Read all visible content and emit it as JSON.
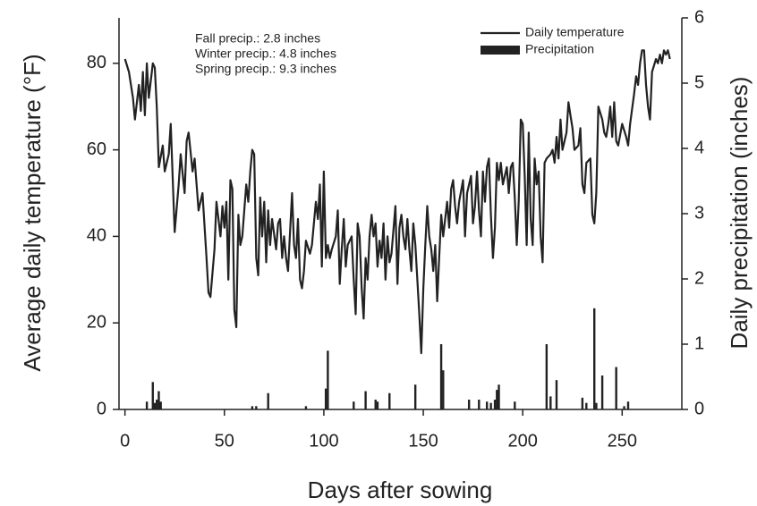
{
  "chart_data": {
    "type": "line",
    "xlabel": "Days after sowing",
    "ylabel": "Average daily temperature (°F)",
    "y2label": "Daily precipitation (inches)",
    "annotations": [
      "Fall precip.: 2.8 inches",
      "Winter precip.: 4.8 inches",
      "Spring precip.: 9.3 inches"
    ],
    "legend": "upper right",
    "xlim": [
      -3,
      280
    ],
    "xticks": [
      0,
      50,
      100,
      150,
      200,
      250
    ],
    "ylim": [
      0,
      90.5
    ],
    "yticks": [
      0,
      20,
      40,
      60,
      80
    ],
    "y2lim": [
      0,
      6
    ],
    "y2ticks": [
      0,
      1,
      2,
      3,
      4,
      5,
      6
    ],
    "series": [
      {
        "name": "Daily temperature",
        "type": "line",
        "color": "#222",
        "x": [
          0,
          2,
          4,
          5,
          7,
          8,
          9,
          10,
          11,
          12,
          14,
          15,
          16,
          17,
          19,
          20,
          22,
          23,
          25,
          27,
          28,
          30,
          31,
          32,
          34,
          35,
          37,
          39,
          41,
          42,
          43,
          45,
          46,
          48,
          49,
          50,
          51,
          52,
          53,
          54,
          55,
          56,
          57,
          58,
          59,
          61,
          62,
          63,
          64,
          65,
          66,
          67,
          68,
          69,
          70,
          71,
          72,
          73,
          74,
          76,
          77,
          78,
          79,
          80,
          81,
          82,
          84,
          85,
          86,
          87,
          88,
          89,
          90,
          91,
          93,
          94,
          96,
          97,
          98,
          99,
          100,
          101,
          102,
          103,
          104,
          106,
          107,
          108,
          109,
          110,
          111,
          112,
          114,
          115,
          116,
          117,
          118,
          119,
          120,
          121,
          122,
          123,
          124,
          125,
          126,
          127,
          128,
          129,
          130,
          131,
          132,
          133,
          134,
          136,
          137,
          138,
          139,
          140,
          141,
          142,
          143,
          144,
          145,
          146,
          147,
          148,
          149,
          150,
          151,
          152,
          153,
          154,
          155,
          156,
          157,
          158,
          159,
          160,
          161,
          162,
          163,
          164,
          165,
          166,
          167,
          168,
          170,
          171,
          172,
          174,
          175,
          176,
          177,
          178,
          179,
          180,
          181,
          182,
          183,
          184,
          185,
          186,
          187,
          188,
          189,
          190,
          192,
          193,
          194,
          195,
          196,
          197,
          198,
          199,
          200,
          201,
          202,
          203,
          204,
          205,
          206,
          207,
          208,
          209,
          210,
          211,
          212,
          214,
          215,
          216,
          217,
          218,
          219,
          220,
          222,
          223,
          224,
          225,
          226,
          228,
          229,
          230,
          231,
          232,
          234,
          235,
          236,
          237,
          238,
          240,
          241,
          242,
          243,
          244,
          245,
          246,
          247,
          248,
          250,
          252,
          253,
          254,
          256,
          257,
          258,
          259,
          260,
          261,
          262,
          263,
          264,
          265,
          267,
          268,
          269,
          270,
          271,
          272,
          273,
          274
        ],
        "values": [
          81,
          78,
          72,
          67,
          75,
          69,
          78,
          68,
          80,
          72,
          80,
          79,
          70,
          56,
          61,
          55,
          59,
          66,
          41,
          52,
          59,
          50,
          62,
          64,
          55,
          58,
          46,
          50,
          35,
          27,
          26,
          37,
          48,
          40,
          47,
          42,
          48,
          30,
          53,
          51,
          23,
          19,
          45,
          38,
          40,
          52,
          48,
          55,
          60,
          59,
          35,
          31,
          49,
          40,
          48,
          34,
          46,
          38,
          44,
          37,
          43,
          44,
          35,
          40,
          35,
          32,
          50,
          38,
          35,
          44,
          30,
          28,
          32,
          39,
          36,
          38,
          48,
          44,
          52,
          33,
          55,
          35,
          38,
          35,
          37,
          40,
          46,
          29,
          37,
          44,
          33,
          38,
          40,
          30,
          22,
          43,
          40,
          28,
          21,
          35,
          30,
          40,
          45,
          40,
          43,
          33,
          39,
          35,
          43,
          30,
          40,
          34,
          36,
          47,
          29,
          42,
          45,
          40,
          37,
          44,
          37,
          32,
          43,
          38,
          30,
          22,
          13,
          28,
          38,
          47,
          40,
          37,
          32,
          38,
          25,
          35,
          45,
          40,
          44,
          48,
          42,
          51,
          53,
          47,
          43,
          48,
          53,
          40,
          50,
          54,
          43,
          47,
          55,
          46,
          40,
          55,
          48,
          56,
          58,
          45,
          35,
          42,
          57,
          53,
          57,
          52,
          56,
          50,
          56,
          57,
          49,
          38,
          48,
          67,
          66,
          54,
          38,
          64,
          44,
          38,
          58,
          52,
          55,
          40,
          34,
          57,
          58,
          59,
          60,
          57,
          63,
          58,
          67,
          60,
          64,
          71,
          68,
          65,
          60,
          61,
          65,
          52,
          50,
          57,
          58,
          45,
          43,
          50,
          70,
          67,
          64,
          63,
          66,
          70,
          63,
          71,
          62,
          61,
          66,
          63,
          61,
          66,
          73,
          77,
          75,
          80,
          83,
          83,
          75,
          70,
          67,
          78,
          81,
          80,
          82,
          80,
          83,
          82,
          83,
          81
        ]
      },
      {
        "name": "Precipitation",
        "type": "bar",
        "axis": "y2",
        "color": "#222",
        "x": [
          11,
          14,
          15,
          16,
          17,
          18,
          64,
          66,
          72,
          91,
          101,
          102,
          115,
          121,
          126,
          127,
          133,
          146,
          159,
          160,
          173,
          178,
          182,
          184,
          186,
          187,
          188,
          196,
          212,
          214,
          217,
          230,
          232,
          236,
          237,
          240,
          247,
          251,
          253
        ],
        "values": [
          0.12,
          0.42,
          0.1,
          0.15,
          0.28,
          0.12,
          0.05,
          0.05,
          0.25,
          0.05,
          0.32,
          0.9,
          0.12,
          0.28,
          0.15,
          0.12,
          0.25,
          0.38,
          1.0,
          0.6,
          0.15,
          0.15,
          0.12,
          0.1,
          0.15,
          0.3,
          0.38,
          0.12,
          1.0,
          0.2,
          0.45,
          0.18,
          0.1,
          1.55,
          0.1,
          0.52,
          0.65,
          0.05,
          0.12
        ]
      }
    ]
  }
}
